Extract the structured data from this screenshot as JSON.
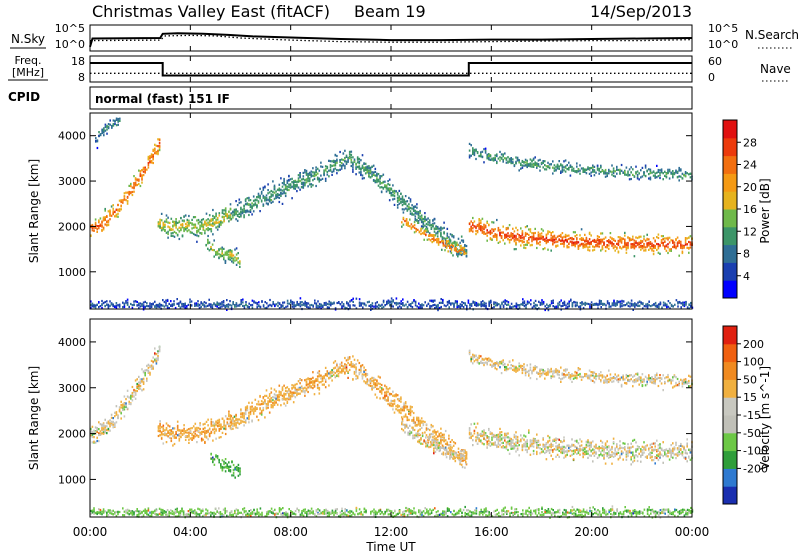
{
  "header": {
    "station": "Christmas Valley East (fitACF)",
    "beam": "Beam 19",
    "date": "14/Sep/2013"
  },
  "strip_labels": {
    "nsky": "N.Sky",
    "nsearch": "N.Search",
    "freq_line1": "Freq.",
    "freq_line2": "[MHz]",
    "nave": "Nave",
    "cpid": "CPID",
    "cpid_value": "normal (fast) 151 IF",
    "noise_ticks_left": [
      "10^5",
      "10^0"
    ],
    "noise_ticks_right": [
      "10^5",
      "10^0"
    ],
    "freq_ticks_left": [
      "18",
      "8"
    ],
    "freq_ticks_right": [
      "60",
      "0"
    ]
  },
  "time_axis": {
    "label": "Time UT",
    "ticks": [
      "00:00",
      "04:00",
      "08:00",
      "12:00",
      "16:00",
      "20:00",
      "00:00"
    ]
  },
  "chart_data": [
    {
      "type": "line",
      "name": "noise",
      "x_range": [
        0,
        24
      ],
      "ylim": [
        0,
        5
      ],
      "series": [
        {
          "name": "N.Sky",
          "style": "solid",
          "x": [
            0,
            0.1,
            2.8,
            2.9,
            3.5,
            4.5,
            5.5,
            6.5,
            8,
            10,
            12,
            14,
            16,
            18,
            20,
            22,
            24
          ],
          "y": [
            0.8,
            2.4,
            2.5,
            3.3,
            3.4,
            3.3,
            3.1,
            2.8,
            2.6,
            2.3,
            2.1,
            2.1,
            2.2,
            2.2,
            2.3,
            2.4,
            2.5
          ]
        },
        {
          "name": "N.Search",
          "style": "dotted",
          "x": [
            0,
            2.8,
            3,
            4,
            5,
            6,
            8,
            10,
            12,
            14,
            16,
            18,
            20,
            22,
            24
          ],
          "y": [
            2.0,
            2.1,
            2.9,
            3.0,
            2.9,
            2.5,
            2.1,
            1.8,
            1.7,
            1.7,
            1.8,
            1.9,
            2.0,
            2.0,
            2.2
          ]
        }
      ]
    },
    {
      "type": "line",
      "name": "frequency",
      "x_range": [
        0,
        24
      ],
      "series": [
        {
          "name": "Freq.",
          "style": "solid",
          "axis": "left",
          "ylim": [
            8,
            18
          ],
          "x": [
            0,
            2.9,
            2.9,
            15.1,
            15.1,
            24
          ],
          "y": [
            15.3,
            15.3,
            10.5,
            10.5,
            15.3,
            15.3
          ]
        },
        {
          "name": "Nave",
          "style": "dotted",
          "axis": "right",
          "ylim": [
            0,
            60
          ],
          "x": [
            0,
            24
          ],
          "y": [
            20,
            20
          ]
        }
      ]
    },
    {
      "type": "heatmap",
      "name": "power",
      "xlabel": "Time UT",
      "ylabel": "Slant Range [km]",
      "x_range": [
        0,
        24
      ],
      "ylim": [
        180,
        4500
      ],
      "y_ticks": [
        1000,
        2000,
        3000,
        4000
      ],
      "colorbar": {
        "label": "Power [dB]",
        "ticks": [
          4,
          8,
          12,
          16,
          20,
          24,
          28
        ],
        "range": [
          0,
          32
        ],
        "colors": [
          "#0000ff",
          "#1a3fb0",
          "#2f6e95",
          "#3c9568",
          "#6fb94a",
          "#e6b31e",
          "#f59a14",
          "#f26f10",
          "#ec3a0c",
          "#e01010"
        ]
      },
      "echo_regions": [
        {
          "x": [
            0.0,
            0.4,
            0.8,
            1.2,
            1.6,
            2.0,
            2.4,
            2.8
          ],
          "y": [
            1950,
            2050,
            2250,
            2500,
            2800,
            3150,
            3500,
            3900
          ],
          "width": 380,
          "peak": 26
        },
        {
          "x": [
            0.2,
            0.5,
            0.9,
            1.2
          ],
          "y": [
            3900,
            4150,
            4300,
            4380
          ],
          "width": 260,
          "peak": 10
        },
        {
          "x": [
            2.7,
            3.2,
            3.8,
            4.4,
            5.0,
            5.6
          ],
          "y": [
            2100,
            2000,
            2050,
            2000,
            2150,
            2300
          ],
          "width": 420,
          "peak": 17
        },
        {
          "x": [
            4.6,
            5.1,
            5.6,
            6.0
          ],
          "y": [
            1650,
            1450,
            1400,
            1250
          ],
          "width": 320,
          "peak": 16
        },
        {
          "x": [
            5.6,
            6.5,
            7.5,
            8.5,
            9.5,
            10.3,
            11.0,
            12.0,
            13.0,
            14.0,
            15.0
          ],
          "y": [
            2250,
            2550,
            2800,
            3050,
            3300,
            3550,
            3250,
            2800,
            2300,
            1850,
            1450
          ],
          "width": 420,
          "peak": 12
        },
        {
          "x": [
            12.4,
            13.2,
            14.0,
            14.6,
            15.0
          ],
          "y": [
            2200,
            1900,
            1650,
            1520,
            1480
          ],
          "width": 260,
          "peak": 24
        },
        {
          "x": [
            15.1,
            16.0,
            17.0,
            18.0,
            19.0,
            20.0,
            21.0,
            22.0,
            23.0,
            24.0
          ],
          "y": [
            2050,
            1900,
            1800,
            1750,
            1700,
            1680,
            1650,
            1640,
            1630,
            1620
          ],
          "width": 380,
          "peak": 28
        },
        {
          "x": [
            15.1,
            16.0,
            17.5,
            19.0,
            20.5,
            22.0,
            24.0
          ],
          "y": [
            3700,
            3550,
            3400,
            3300,
            3250,
            3200,
            3150
          ],
          "width": 260,
          "peak": 12
        },
        {
          "x": [
            0.0,
            6.0,
            12.0,
            18.0,
            24.0
          ],
          "y": [
            300,
            300,
            300,
            300,
            300
          ],
          "width": 180,
          "peak": 7
        }
      ]
    },
    {
      "type": "heatmap",
      "name": "velocity",
      "xlabel": "Time UT",
      "ylabel": "Slant Range [km]",
      "x_range": [
        0,
        24
      ],
      "ylim": [
        180,
        4500
      ],
      "y_ticks": [
        1000,
        2000,
        3000,
        4000
      ],
      "colorbar": {
        "label": "Velocity [m s^-1]",
        "ticks": [
          "200",
          "100",
          "50",
          "15",
          "-15",
          "-50",
          "-100",
          "-200"
        ],
        "colors": [
          "#1a2fb0",
          "#2f7ad0",
          "#2f9e3a",
          "#6cc845",
          "#c0c0b8",
          "#c8c8c0",
          "#f0b040",
          "#f08a20",
          "#f06010",
          "#e02010"
        ]
      },
      "echo_regions": [
        {
          "x": [
            0.0,
            0.4,
            0.8,
            1.2,
            1.6,
            2.0,
            2.4,
            2.8
          ],
          "y": [
            1950,
            2050,
            2250,
            2500,
            2800,
            3150,
            3500,
            3900
          ],
          "width": 380,
          "vel": -10
        },
        {
          "x": [
            2.7,
            3.2,
            3.8,
            4.4,
            5.0,
            5.6
          ],
          "y": [
            2100,
            2000,
            2050,
            2000,
            2150,
            2300
          ],
          "width": 420,
          "vel": -40
        },
        {
          "x": [
            4.8,
            5.2,
            5.6,
            6.0
          ],
          "y": [
            1500,
            1350,
            1250,
            1200
          ],
          "width": 300,
          "vel": 60
        },
        {
          "x": [
            5.6,
            6.5,
            7.5,
            8.5,
            9.5,
            10.3,
            11.0,
            12.0,
            13.0,
            14.0,
            15.0
          ],
          "y": [
            2250,
            2550,
            2800,
            3050,
            3300,
            3550,
            3250,
            2800,
            2300,
            1850,
            1450
          ],
          "width": 420,
          "vel": -35
        },
        {
          "x": [
            12.4,
            13.2,
            14.0,
            14.6,
            15.0
          ],
          "y": [
            2200,
            1900,
            1650,
            1520,
            1480
          ],
          "width": 280,
          "vel": -8
        },
        {
          "x": [
            15.1,
            16.0,
            17.0,
            18.0,
            19.0,
            20.0,
            21.0,
            22.0,
            23.0,
            24.0
          ],
          "y": [
            2050,
            1900,
            1800,
            1750,
            1700,
            1680,
            1650,
            1640,
            1630,
            1620
          ],
          "width": 420,
          "vel": -5
        },
        {
          "x": [
            15.1,
            16.0,
            17.5,
            19.0,
            20.5,
            22.0,
            24.0
          ],
          "y": [
            3700,
            3550,
            3400,
            3300,
            3250,
            3200,
            3150
          ],
          "width": 260,
          "vel": -12
        },
        {
          "x": [
            0.0,
            6.0,
            12.0,
            18.0,
            24.0
          ],
          "y": [
            300,
            300,
            300,
            300,
            300
          ],
          "width": 180,
          "vel": 30
        }
      ]
    }
  ]
}
